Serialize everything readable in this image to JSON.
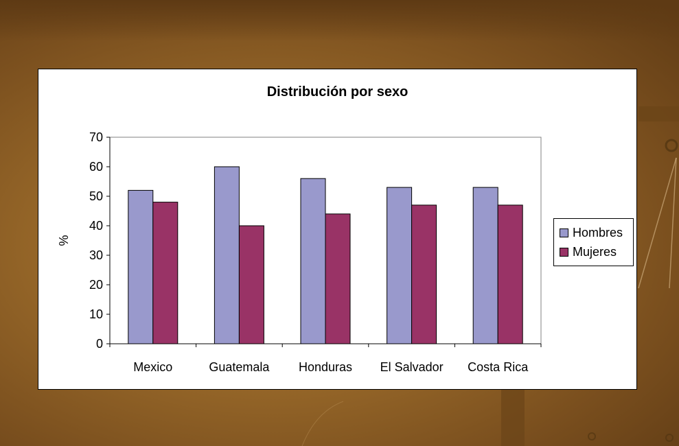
{
  "chart_data": {
    "type": "bar",
    "title": "Distribución por sexo",
    "xlabel": "",
    "ylabel": "%",
    "ylim": [
      0,
      70
    ],
    "yticks": [
      0,
      10,
      20,
      30,
      40,
      50,
      60,
      70
    ],
    "categories": [
      "Mexico",
      "Guatemala",
      "Honduras",
      "El Salvador",
      "Costa Rica"
    ],
    "series": [
      {
        "name": "Hombres",
        "values": [
          52,
          60,
          56,
          53,
          53
        ],
        "color": "#9999cc"
      },
      {
        "name": "Mujeres",
        "values": [
          48,
          40,
          44,
          47,
          47
        ],
        "color": "#993366"
      }
    ],
    "legend": "right",
    "grid": false
  }
}
